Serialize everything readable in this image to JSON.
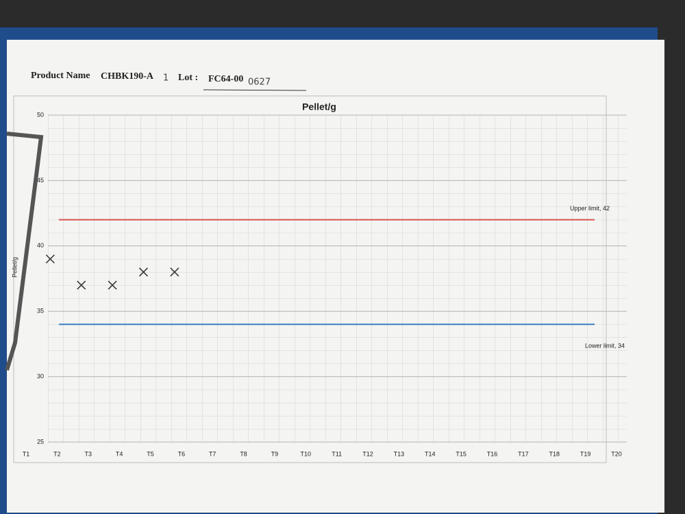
{
  "header": {
    "product_label": "Product Name",
    "product": "CHBK190-A",
    "product_note": "1",
    "lot_label": "Lot :",
    "lot": "FC64-00",
    "lot_note": "0627"
  },
  "chart_data": {
    "type": "scatter",
    "title": "Pellet/g",
    "y_label": "Pellet/g",
    "categories": [
      "T1",
      "T2",
      "T3",
      "T4",
      "T5",
      "T6",
      "T7",
      "T8",
      "T9",
      "T10",
      "T11",
      "T12",
      "T13",
      "T14",
      "T15",
      "T16",
      "T17",
      "T18",
      "T19",
      "T20"
    ],
    "values": [
      null,
      39,
      37,
      37,
      38,
      38,
      null,
      null,
      null,
      null,
      null,
      null,
      null,
      null,
      null,
      null,
      null,
      null,
      null,
      null
    ],
    "color": "#333333",
    "ylim": [
      25,
      50
    ],
    "yticks": [
      25,
      30,
      35,
      40,
      45,
      50
    ],
    "grid": true,
    "limits": [
      {
        "label": "Upper limit, 42",
        "value": 42,
        "color": "#d9534f"
      },
      {
        "label": "Lower limit, 34",
        "value": 34,
        "color": "#3a7fc1"
      }
    ]
  }
}
